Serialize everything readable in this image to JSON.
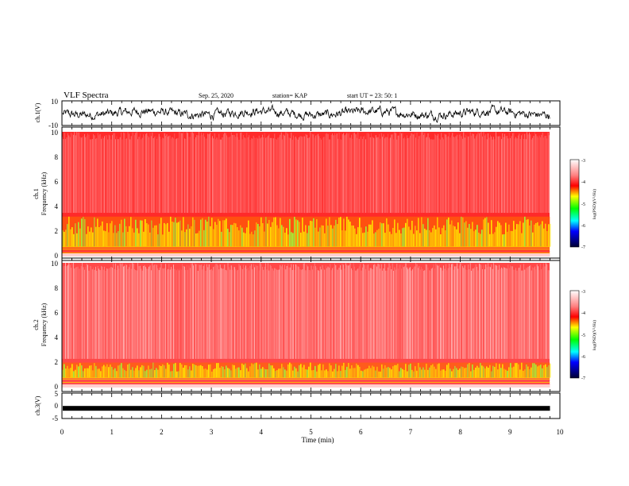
{
  "header": {
    "title": "VLF Spectra",
    "date": "Sep. 25, 2020",
    "station": "station= KAP",
    "start": "start  UT  =   23: 50: 1"
  },
  "chart_data": [
    {
      "type": "line",
      "ylabel": "ch.1(V)",
      "xlim": [
        0,
        10
      ],
      "ylim": [
        -10,
        10
      ],
      "y_ticks": [
        "10",
        "-10"
      ],
      "description_values": "dense waveform, amplitude roughly -5 to 5 V over 0-9.8 min",
      "series": [
        {
          "color": "#000000"
        }
      ]
    },
    {
      "type": "heatmap",
      "ylabel": "ch.1\nFrequency (kHz)",
      "xlim": [
        0,
        10
      ],
      "data_end_min": 9.8,
      "ylim": [
        0,
        10
      ],
      "y_ticks": [
        "0",
        "2",
        "4",
        "6",
        "8",
        "10"
      ],
      "band_kHz": [
        0.8,
        3.2
      ],
      "colorbar": {
        "label": "log(PSD)(V²/Hz)",
        "range": [
          -7,
          -3
        ],
        "ticks": [
          "-3",
          "-4",
          "-5",
          "-6",
          "-7"
        ],
        "colors": [
          "#ffffff",
          "#ff0000",
          "#ffff00",
          "#00ff00",
          "#00ffff",
          "#0000ff",
          "#000033"
        ]
      }
    },
    {
      "type": "heatmap",
      "ylabel": "ch.2\nFrequency (kHz)",
      "xlim": [
        0,
        10
      ],
      "data_end_min": 9.8,
      "ylim": [
        0,
        10
      ],
      "y_ticks": [
        "0",
        "2",
        "4",
        "6",
        "8",
        "10"
      ],
      "band_kHz": [
        0.8,
        2.0
      ],
      "colorbar": {
        "label": "log(PSD)(V²/Hz)",
        "range": [
          -7,
          -3
        ],
        "ticks": [
          "-3",
          "-4",
          "-5",
          "-6",
          "-7"
        ],
        "colors": [
          "#ffffff",
          "#ff0000",
          "#ffff00",
          "#00ff00",
          "#00ffff",
          "#0000ff",
          "#000033"
        ]
      }
    },
    {
      "type": "line",
      "ylabel": "ch.3(V)",
      "xlim": [
        0,
        10
      ],
      "ylim": [
        -5,
        5
      ],
      "y_ticks": [
        "5",
        "0",
        "-5"
      ],
      "series": [
        {
          "color": "#000000",
          "level": -1
        }
      ]
    }
  ],
  "x_axis": {
    "label": "Time (min)",
    "ticks": [
      "0",
      "1",
      "2",
      "3",
      "4",
      "5",
      "6",
      "7",
      "8",
      "9",
      "10"
    ]
  }
}
